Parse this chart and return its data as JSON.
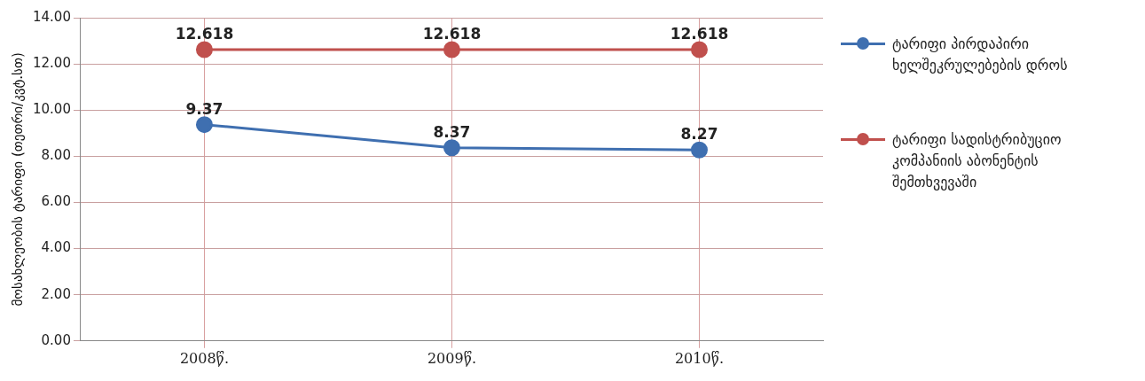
{
  "chart_data": {
    "type": "line",
    "categories": [
      "2008წ.",
      "2009წ.",
      "2010წ."
    ],
    "series": [
      {
        "name": "ტარიფი პირდაპირი ხელშეკრულებების დროს",
        "color": "#3f6fb0",
        "values": [
          9.37,
          8.37,
          8.27
        ]
      },
      {
        "name": "ტარიფი სადისტრიბუციო კომპანიის აბონენტის შემთხვევაში",
        "color": "#c0504d",
        "values": [
          12.618,
          12.618,
          12.618
        ]
      }
    ],
    "ylabel": "მოსახლეობის ტარიფი (თეთრი/კვტ.სთ)",
    "ylim": [
      0,
      14
    ],
    "yticks": [
      {
        "value": 0,
        "label": "0.00"
      },
      {
        "value": 2,
        "label": "2.00"
      },
      {
        "value": 4,
        "label": "4.00"
      },
      {
        "value": 6,
        "label": "6.00"
      },
      {
        "value": 8,
        "label": "8.00"
      },
      {
        "value": 10,
        "label": "10.00"
      },
      {
        "value": 12,
        "label": "12.00"
      },
      {
        "value": 14,
        "label": "14.00"
      }
    ],
    "grid": true,
    "legend": "right",
    "marker": "circle",
    "line_style": "solid",
    "data_labels": true
  }
}
